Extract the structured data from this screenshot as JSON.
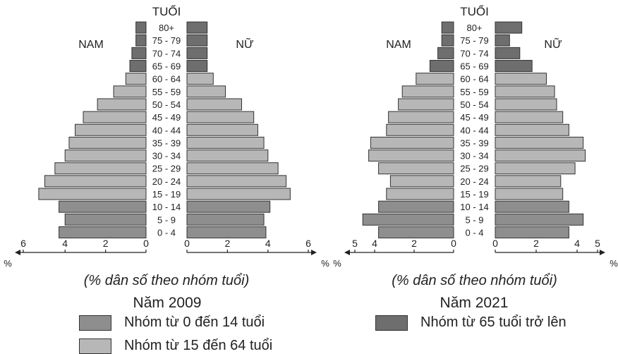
{
  "colors": {
    "young": "#8e8e8e",
    "working": "#b7b7b7",
    "elderly": "#6e6e6e",
    "border": "#333333"
  },
  "age_groups": [
    "0 - 4",
    "5 - 9",
    "10 - 14",
    "15 - 19",
    "20 - 24",
    "25 - 29",
    "30 - 34",
    "35 - 39",
    "40 - 44",
    "45 - 49",
    "50 - 54",
    "55 - 59",
    "60 - 64",
    "65 - 69",
    "70 - 74",
    "75 - 79",
    "80+"
  ],
  "chart_data": [
    {
      "type": "bar",
      "title": "Năm 2009",
      "y_axis_title": "TUỔI",
      "left_label": "NAM",
      "right_label": "NỮ",
      "xlabel": "(% dân số theo nhóm tuổi)",
      "unit": "%",
      "xlim": [
        0,
        6
      ],
      "left_ticks": [
        "6",
        "4",
        "2",
        "0"
      ],
      "right_ticks": [
        "0",
        "2",
        "4",
        "6"
      ],
      "categories": [
        "0 - 4",
        "5 - 9",
        "10 - 14",
        "15 - 19",
        "20 - 24",
        "25 - 29",
        "30 - 34",
        "35 - 39",
        "40 - 44",
        "45 - 49",
        "50 - 54",
        "55 - 59",
        "60 - 64",
        "65 - 69",
        "70 - 74",
        "75 - 79",
        "80+"
      ],
      "series": [
        {
          "name": "NAM",
          "values": [
            4.3,
            4.0,
            4.3,
            5.3,
            5.0,
            4.5,
            4.0,
            3.8,
            3.5,
            3.1,
            2.4,
            1.6,
            1.0,
            0.8,
            0.7,
            0.5,
            0.5
          ]
        },
        {
          "name": "NỮ",
          "values": [
            3.9,
            3.8,
            4.1,
            5.1,
            4.9,
            4.5,
            4.0,
            3.8,
            3.5,
            3.3,
            2.7,
            1.9,
            1.3,
            1.0,
            1.0,
            1.0,
            1.0
          ]
        }
      ]
    },
    {
      "type": "bar",
      "title": "Năm 2021",
      "y_axis_title": "TUỔI",
      "left_label": "NAM",
      "right_label": "NỮ",
      "xlabel": "(% dân số theo nhóm tuổi)",
      "unit": "%",
      "xlim": [
        0,
        5
      ],
      "left_ticks": [
        "5",
        "4",
        "2",
        "0"
      ],
      "right_ticks": [
        "0",
        "2",
        "4",
        "5"
      ],
      "categories": [
        "0 - 4",
        "5 - 9",
        "10 - 14",
        "15 - 19",
        "20 - 24",
        "25 - 29",
        "30 - 34",
        "35 - 39",
        "40 - 44",
        "45 - 49",
        "50 - 54",
        "55 - 59",
        "60 - 64",
        "65 - 69",
        "70 - 74",
        "75 - 79",
        "80+"
      ],
      "series": [
        {
          "name": "NAM",
          "values": [
            3.8,
            4.6,
            3.8,
            3.4,
            3.2,
            3.8,
            4.3,
            4.2,
            3.4,
            3.3,
            2.8,
            2.6,
            1.9,
            1.2,
            0.8,
            0.6,
            0.6
          ]
        },
        {
          "name": "NỮ",
          "values": [
            3.6,
            4.3,
            3.6,
            3.3,
            3.2,
            3.9,
            4.4,
            4.3,
            3.6,
            3.3,
            3.0,
            2.9,
            2.5,
            1.8,
            1.2,
            0.7,
            1.3
          ]
        }
      ]
    }
  ],
  "legend": [
    {
      "label": "Nhóm từ 0 đến 14 tuổi",
      "color_key": "young"
    },
    {
      "label": "Nhóm từ 15 đến 64 tuổi",
      "color_key": "working"
    },
    {
      "label": "Nhóm từ 65 tuổi trở lên",
      "color_key": "elderly"
    }
  ]
}
